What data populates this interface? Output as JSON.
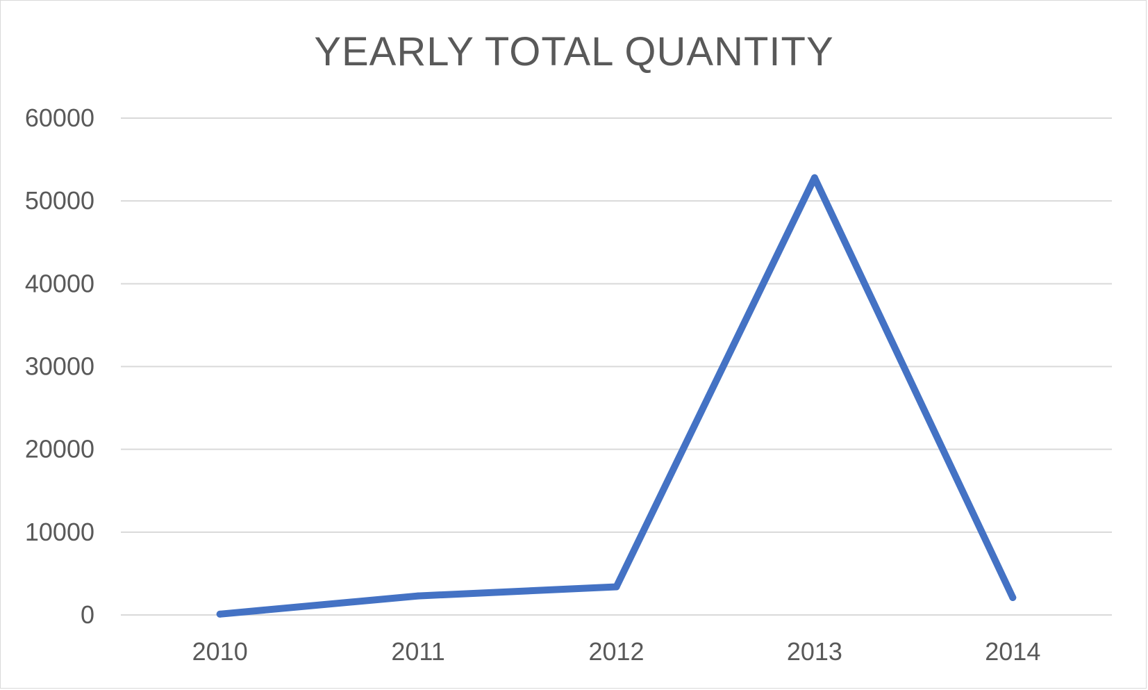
{
  "chart_data": {
    "type": "line",
    "title": "YEARLY TOTAL QUANTITY",
    "xlabel": "",
    "ylabel": "",
    "categories": [
      "2010",
      "2011",
      "2012",
      "2013",
      "2014"
    ],
    "series": [
      {
        "values": [
          100,
          2300,
          3400,
          52800,
          2100
        ],
        "color": "#4472c4"
      }
    ],
    "ylim": [
      0,
      60000
    ],
    "yticks": [
      0,
      10000,
      20000,
      30000,
      40000,
      50000,
      60000
    ],
    "ytick_labels": [
      "0",
      "10000",
      "20000",
      "30000",
      "40000",
      "50000",
      "60000"
    ],
    "grid": true,
    "legend": "none",
    "colors": {
      "gridline": "#d9d9d9",
      "text": "#595959",
      "series": "#4472c4"
    }
  }
}
